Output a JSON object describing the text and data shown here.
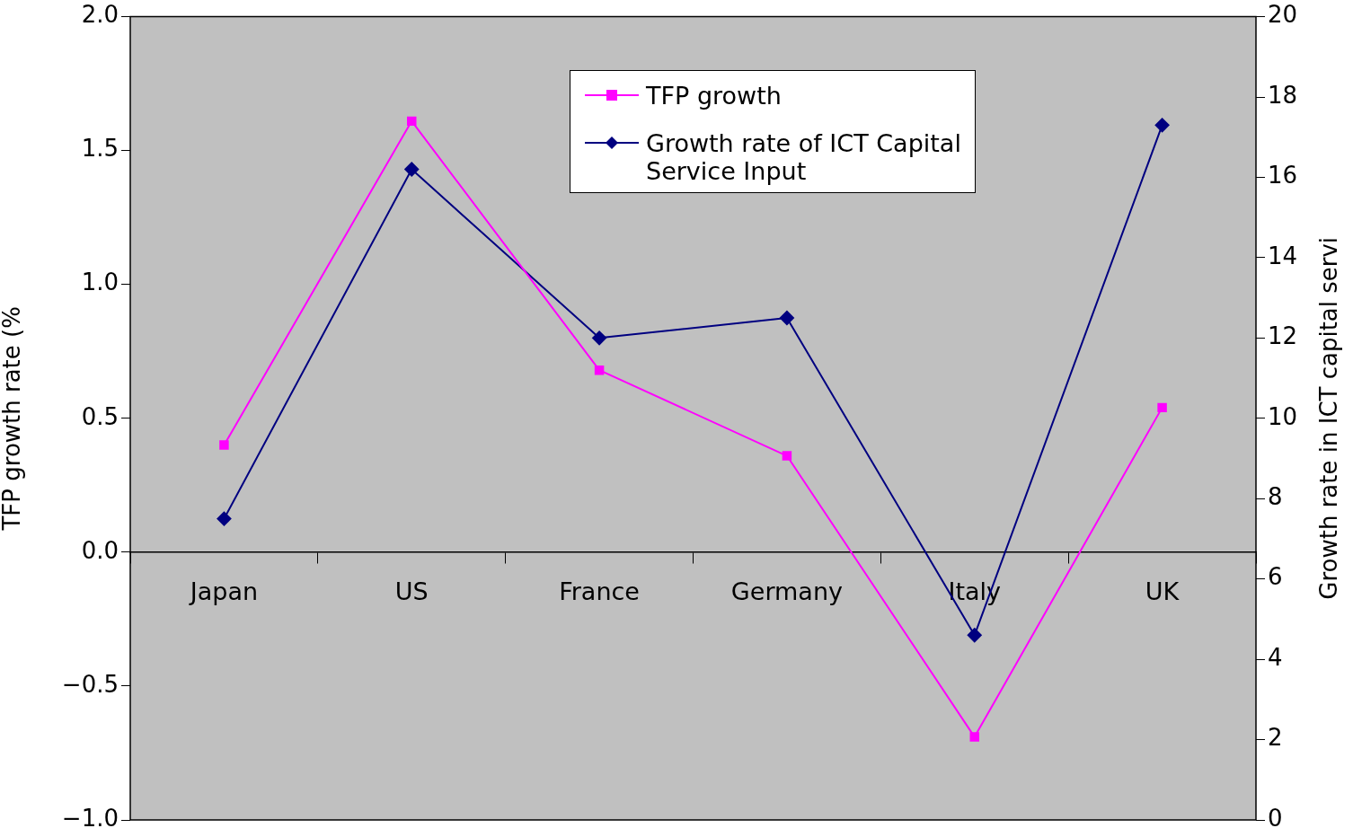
{
  "chart_data": {
    "type": "line",
    "ylabel": "TFP growth rate (%",
    "y2label": "Growth rate in ICT capital servi",
    "categories": [
      "Japan",
      "US",
      "France",
      "Germany",
      "Italy",
      "UK"
    ],
    "series": [
      {
        "name": "TFP growth",
        "color": "#ff00ff",
        "marker": "square",
        "values": [
          0.4,
          1.61,
          0.68,
          0.36,
          -0.69,
          0.54
        ]
      },
      {
        "name": "Growth rate of ICT Capital Service Input",
        "color": "#000080",
        "marker": "diamond",
        "axis": "y2",
        "values": [
          7.5,
          16.2,
          12.0,
          12.5,
          4.6,
          17.3
        ]
      }
    ],
    "ylim": [
      -1,
      2
    ],
    "yticks": [
      {
        "value": -1,
        "label": "−1.0"
      },
      {
        "value": -0.5,
        "label": "−0.5"
      },
      {
        "value": 0,
        "label": "0.0"
      },
      {
        "value": 0.5,
        "label": "0.5"
      },
      {
        "value": 1,
        "label": "1.0"
      },
      {
        "value": 1.5,
        "label": "1.5"
      },
      {
        "value": 2,
        "label": "2.0"
      }
    ],
    "y2lim": [
      0,
      20
    ],
    "y2ticks": [
      0,
      2,
      4,
      6,
      8,
      10,
      12,
      14,
      16,
      18,
      20
    ],
    "grid": false,
    "legend": "top right",
    "line_style": "solid"
  }
}
